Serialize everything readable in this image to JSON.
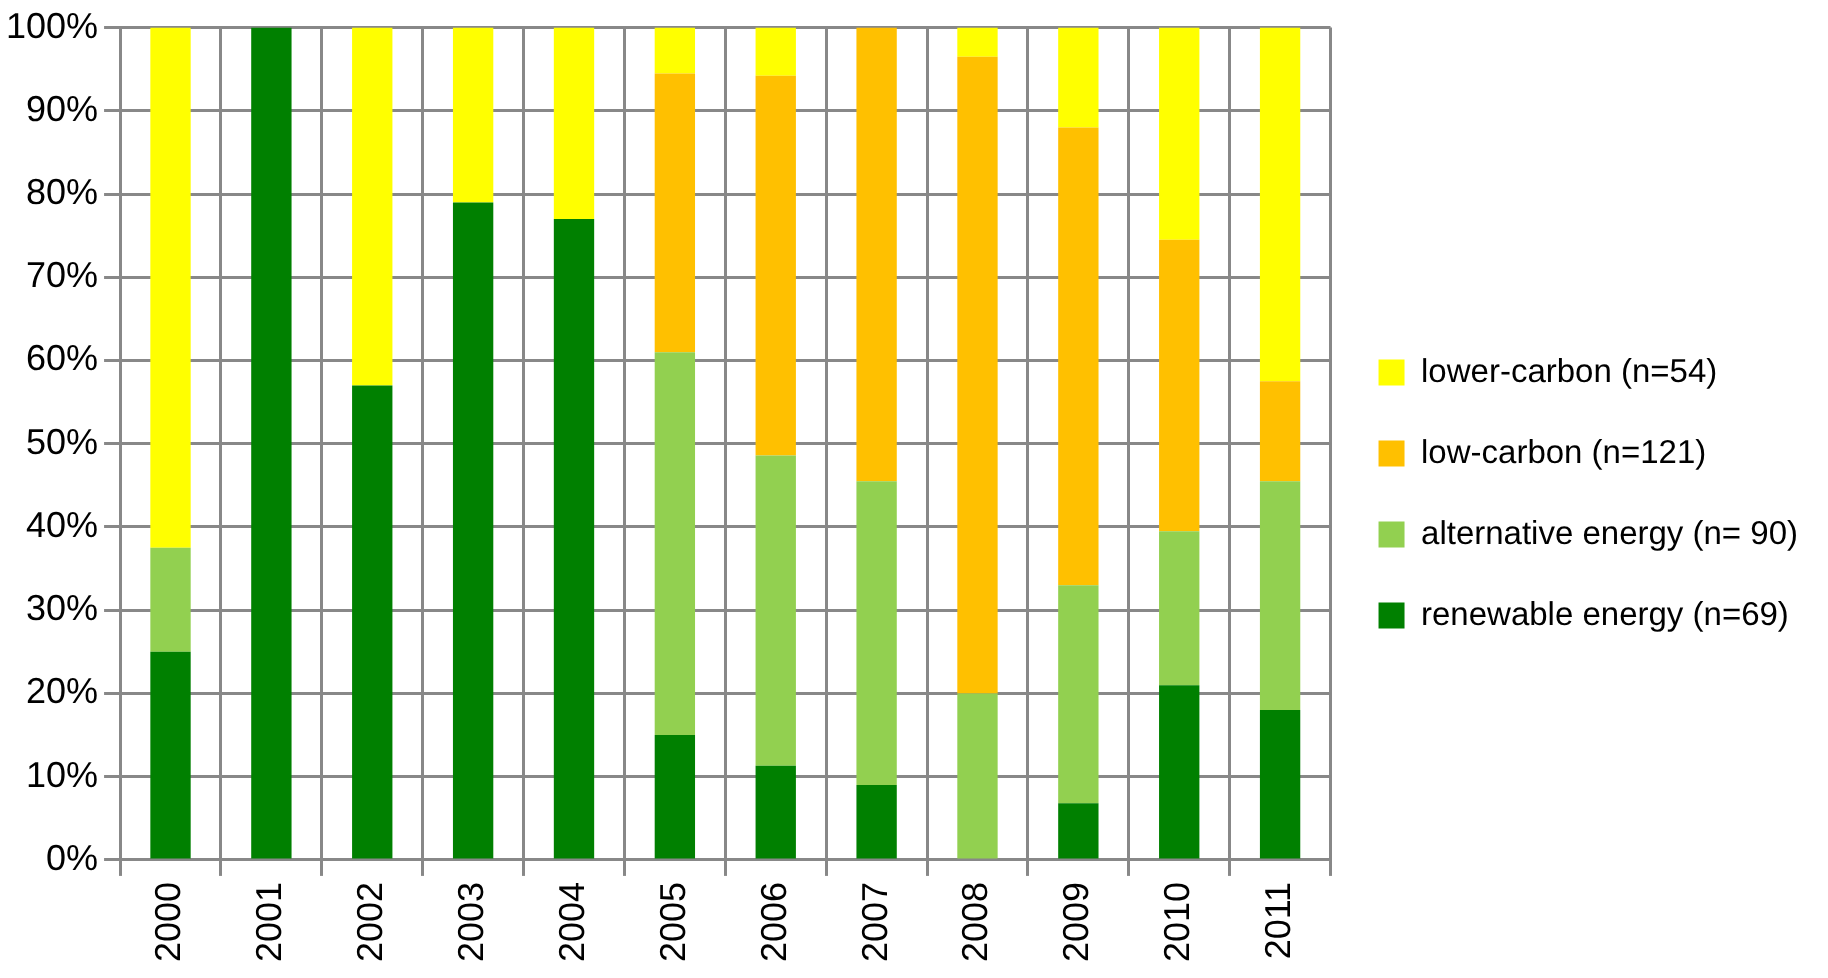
{
  "chart_data": {
    "type": "bar",
    "stacked": true,
    "categories": [
      "2000",
      "2001",
      "2002",
      "2003",
      "2004",
      "2005",
      "2006",
      "2007",
      "2008",
      "2009",
      "2010",
      "2011"
    ],
    "series": [
      {
        "name": "renewable energy (n=69)",
        "color": "#008000",
        "values": [
          25,
          100,
          57,
          79,
          77,
          15,
          11.3,
          9,
          0,
          6.8,
          21,
          18
        ]
      },
      {
        "name": "alternative energy (n= 90)",
        "color": "#92d050",
        "values": [
          12.5,
          0,
          0,
          0,
          0,
          46,
          37.3,
          36.5,
          20,
          26.2,
          18.5,
          27.5
        ]
      },
      {
        "name": "low-carbon (n=121)",
        "color": "#ffc000",
        "values": [
          0,
          0,
          0,
          0,
          0,
          33.5,
          45.6,
          54.5,
          76.5,
          55,
          35,
          12
        ]
      },
      {
        "name": "lower-carbon (n=54)",
        "color": "#ffff00",
        "values": [
          62.5,
          0,
          43,
          21,
          23,
          5.5,
          5.8,
          0,
          3.5,
          12,
          25.5,
          42.5
        ]
      }
    ],
    "ylim": [
      0,
      100
    ],
    "yticks": [
      {
        "value": 0,
        "label": "0%"
      },
      {
        "value": 10,
        "label": "10%"
      },
      {
        "value": 20,
        "label": "20%"
      },
      {
        "value": 30,
        "label": "30%"
      },
      {
        "value": 40,
        "label": "40%"
      },
      {
        "value": 50,
        "label": "50%"
      },
      {
        "value": 60,
        "label": "60%"
      },
      {
        "value": 70,
        "label": "70%"
      },
      {
        "value": 80,
        "label": "80%"
      },
      {
        "value": 90,
        "label": "90%"
      },
      {
        "value": 100,
        "label": "100%"
      }
    ],
    "grid": true,
    "legend": "right"
  }
}
